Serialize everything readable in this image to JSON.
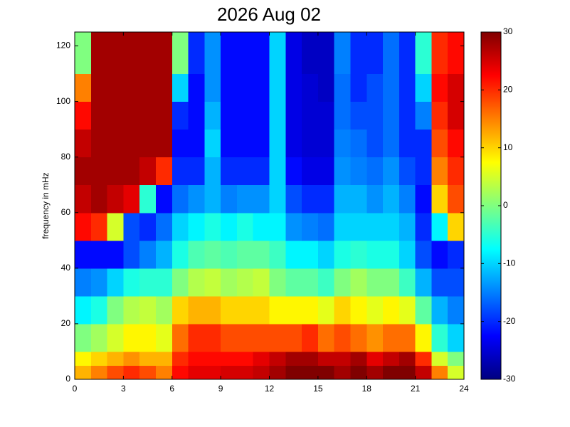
{
  "chart_data": {
    "type": "heatmap",
    "title": "2026 Aug 02",
    "ylabel": "frequency in mHz",
    "colormap": "jet",
    "clim": [
      -30,
      30
    ],
    "xlim": [
      0,
      24
    ],
    "ylim": [
      0,
      125
    ],
    "xticks": [
      0,
      3,
      6,
      9,
      12,
      15,
      18,
      21,
      24
    ],
    "yticks": [
      0,
      20,
      40,
      60,
      80,
      100,
      120
    ],
    "cticks": [
      -30,
      -20,
      -10,
      0,
      10,
      20,
      30
    ],
    "x_bins": [
      0,
      1,
      2,
      3,
      4,
      5,
      6,
      7,
      8,
      9,
      10,
      11,
      12,
      13,
      14,
      15,
      16,
      17,
      18,
      19,
      20,
      21,
      22,
      23,
      24
    ],
    "y_bins": [
      0,
      5,
      10,
      20,
      30,
      40,
      50,
      60,
      70,
      80,
      90,
      100,
      110,
      125
    ],
    "z": [
      [
        12,
        15,
        18,
        20,
        18,
        15,
        22,
        24,
        24,
        25,
        25,
        26,
        28,
        30,
        30,
        30,
        28,
        30,
        28,
        30,
        30,
        26,
        15,
        5
      ],
      [
        8,
        10,
        12,
        14,
        12,
        12,
        20,
        22,
        22,
        22,
        22,
        24,
        26,
        28,
        28,
        26,
        26,
        28,
        24,
        26,
        28,
        20,
        5,
        0
      ],
      [
        0,
        2,
        5,
        8,
        8,
        6,
        16,
        20,
        20,
        18,
        18,
        18,
        18,
        18,
        20,
        16,
        18,
        16,
        14,
        16,
        16,
        8,
        -5,
        -10
      ],
      [
        -8,
        -6,
        0,
        3,
        4,
        2,
        10,
        12,
        12,
        10,
        10,
        10,
        8,
        8,
        8,
        6,
        10,
        8,
        6,
        8,
        6,
        -2,
        -12,
        -15
      ],
      [
        -15,
        -14,
        -10,
        -6,
        -5,
        -5,
        0,
        3,
        4,
        2,
        3,
        4,
        0,
        -2,
        -2,
        -4,
        0,
        2,
        0,
        0,
        -4,
        -12,
        -18,
        -18
      ],
      [
        -22,
        -22,
        -22,
        -18,
        -15,
        -12,
        -6,
        -3,
        -2,
        -3,
        -2,
        -2,
        -4,
        -8,
        -8,
        -10,
        -6,
        -5,
        -6,
        -6,
        -10,
        -18,
        -22,
        -20
      ],
      [
        22,
        20,
        5,
        -18,
        -20,
        -16,
        -10,
        -8,
        -6,
        -8,
        -6,
        -8,
        -8,
        -14,
        -15,
        -16,
        -10,
        -10,
        -10,
        -10,
        -12,
        -20,
        -8,
        10
      ],
      [
        26,
        28,
        26,
        24,
        -5,
        -22,
        -16,
        -14,
        -12,
        -15,
        -14,
        -14,
        -10,
        -18,
        -20,
        -20,
        -12,
        -12,
        -14,
        -12,
        -15,
        -22,
        10,
        18
      ],
      [
        28,
        28,
        28,
        28,
        26,
        20,
        -20,
        -20,
        -12,
        -20,
        -20,
        -20,
        -10,
        -22,
        -24,
        -24,
        -14,
        -15,
        -16,
        -14,
        -18,
        -20,
        15,
        20
      ],
      [
        26,
        28,
        28,
        28,
        28,
        28,
        -22,
        -22,
        -10,
        -22,
        -22,
        -22,
        -10,
        -24,
        -25,
        -25,
        -15,
        -16,
        -18,
        -16,
        -20,
        -20,
        18,
        22
      ],
      [
        22,
        28,
        28,
        28,
        28,
        28,
        -20,
        -22,
        -12,
        -22,
        -22,
        -22,
        -10,
        -24,
        -25,
        -25,
        -16,
        -18,
        -18,
        -16,
        -20,
        -15,
        20,
        25
      ],
      [
        15,
        28,
        28,
        28,
        28,
        28,
        -10,
        -22,
        -14,
        -22,
        -22,
        -22,
        -10,
        -24,
        -25,
        -26,
        -16,
        -20,
        -18,
        -16,
        -20,
        -10,
        22,
        25
      ],
      [
        0,
        28,
        28,
        28,
        28,
        28,
        0,
        -20,
        -14,
        -22,
        -22,
        -22,
        -10,
        -24,
        -26,
        -26,
        -15,
        -20,
        -20,
        -16,
        -20,
        -5,
        20,
        22
      ]
    ]
  }
}
